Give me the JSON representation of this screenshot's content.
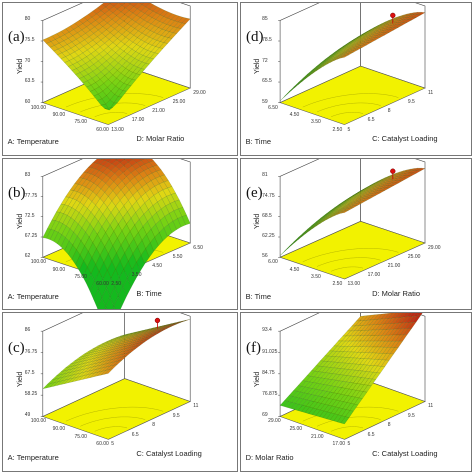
{
  "chart_data": [
    {
      "type": "surface3d",
      "panel_label": "(a)",
      "zlabel": "Yield",
      "zticks": [
        "80",
        "75.5",
        "70",
        "63.5",
        "60"
      ],
      "xlabel": "A: Temperature",
      "xticks": [
        "100.00",
        "90.00",
        "75.00",
        "60.00"
      ],
      "ylabel": "D: Molar Ratio",
      "yticks": [
        "13.00",
        "17.00",
        "21.00",
        "25.00",
        "29.00"
      ],
      "shape": "saddle-minimum-front",
      "design_point": false
    },
    {
      "type": "surface3d",
      "panel_label": "(d)",
      "zlabel": "Yield",
      "zticks": [
        "85",
        "78.5",
        "72",
        "65.5",
        "59"
      ],
      "xlabel": "B: Time",
      "xticks": [
        "6.50",
        "4.50",
        "3.50",
        "2.50"
      ],
      "ylabel": "C: Catalyst Loading",
      "yticks": [
        "5",
        "6.5",
        "8",
        "9.5",
        "11"
      ],
      "shape": "plateau-back",
      "design_point": true
    },
    {
      "type": "surface3d",
      "panel_label": "(b)",
      "zlabel": "Yield",
      "zticks": [
        "83",
        "77.75",
        "72.5",
        "67.25",
        "62"
      ],
      "xlabel": "A: Temperature",
      "xticks": [
        "100.00",
        "90.00",
        "75.00",
        "60.00"
      ],
      "ylabel": "B: Time",
      "yticks": [
        "2.50",
        "3.50",
        "4.50",
        "5.50",
        "6.50"
      ],
      "shape": "dome",
      "design_point": false
    },
    {
      "type": "surface3d",
      "panel_label": "(e)",
      "zlabel": "Yield",
      "zticks": [
        "81",
        "74.75",
        "68.5",
        "62.25",
        "56"
      ],
      "xlabel": "B: Time",
      "xticks": [
        "6.00",
        "4.50",
        "3.50",
        "2.50"
      ],
      "ylabel": "D: Molar Ratio",
      "yticks": [
        "13.00",
        "17.00",
        "21.00",
        "25.00",
        "29.00"
      ],
      "shape": "plateau-back",
      "design_point": true
    },
    {
      "type": "surface3d",
      "panel_label": "(c)",
      "zlabel": "Yield",
      "zticks": [
        "86",
        "76.75",
        "67.5",
        "58.25",
        "49"
      ],
      "xlabel": "A: Temperature",
      "xticks": [
        "100.00",
        "90.00",
        "75.00",
        "60.00"
      ],
      "ylabel": "C: Catalyst Loading",
      "yticks": [
        "5",
        "6.5",
        "8",
        "9.5",
        "11"
      ],
      "shape": "ridge-back",
      "design_point": true
    },
    {
      "type": "surface3d",
      "panel_label": "(f)",
      "zlabel": "Yield",
      "zticks": [
        "93.4",
        "91.025",
        "84.75",
        "76.875",
        "69"
      ],
      "xlabel": "D: Molar Ratio",
      "xticks": [
        "29.00",
        "25.00",
        "21.00",
        "17.00"
      ],
      "ylabel": "C: Catalyst Loading",
      "yticks": [
        "5",
        "6.5",
        "8",
        "9.5",
        "11"
      ],
      "shape": "rising-right",
      "design_point": false
    }
  ]
}
